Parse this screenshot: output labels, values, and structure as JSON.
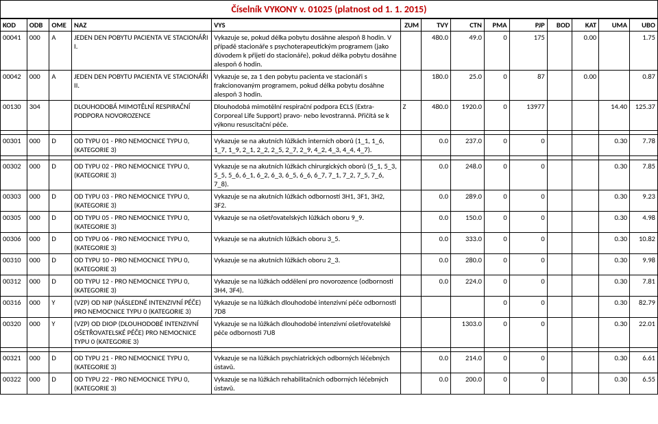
{
  "title": "Číselník VYKONY v. 01025 (platnost od 1. 1. 2015)",
  "columns": [
    "KOD",
    "ODB",
    "OME",
    "NAZ",
    "VYS",
    "ZUM",
    "TVY",
    "CTN",
    "PMA",
    "PJP",
    "BOD",
    "KAT",
    "UMA",
    "UBO"
  ],
  "rows": [
    {
      "kod": "00041",
      "odb": "000",
      "ome": "A",
      "naz": "JEDEN DEN POBYTU PACIENTA VE STACIONÁŘI I.",
      "vys": "Vykazuje se, pokud délka pobytu dosáhne alespoň 8 hodin. V případě stacionáře s psychoterapeutickým programem (jako důvodem k přijetí do stacionáře), pokud délka pobytu dosáhne alespoň 6 hodin.",
      "zum": "",
      "tvy": "480.0",
      "ctn": "49.0",
      "pma": "0",
      "pjp": "175",
      "bod": "",
      "kat": "0.00",
      "uma": "",
      "ubo": "1.75"
    },
    {
      "kod": "00042",
      "odb": "000",
      "ome": "A",
      "naz": "JEDEN DEN POBYTU PACIENTA VE STACIONÁŘI II.",
      "vys": "Vykazuje se, za 1 den pobytu pacienta ve stacionáři s frakcionovaným programem, pokud délka pobytu dosáhne alespoň 3 hodin.",
      "zum": "",
      "tvy": "180.0",
      "ctn": "25.0",
      "pma": "0",
      "pjp": "87",
      "bod": "",
      "kat": "0.00",
      "uma": "",
      "ubo": "0.87"
    },
    {
      "kod": "00130",
      "odb": "304",
      "ome": "",
      "naz": "DLOUHODOBÁ MIMOTĚLNÍ RESPIRAČNÍ PODPORA NOVOROZENCE",
      "vys": "Dlouhodobá mimotělní respirační podpora ECLS (Extra-Corporeal Life Support) pravo- nebo levostranná. Přičítá se k výkonu resuscitační péče.",
      "zum": "Z",
      "tvy": "480.0",
      "ctn": "1920.0",
      "pma": "0",
      "pjp": "13977",
      "bod": "",
      "kat": "",
      "uma": "14.40",
      "ubo": "125.37"
    },
    {
      "spacer": true
    },
    {
      "kod": "00301",
      "odb": "000",
      "ome": "D",
      "naz": "OD TYPU 01 - PRO NEMOCNICE TYPU 0, (KATEGORIE 3)",
      "vys": "Vykazuje se na akutních lůžkách interních oborů (1_1, 1_6, 1_7, 1_9, 2_1, 2_2, 2_5, 2_7, 2_9, 4_2, 4_3, 4_4, 4_7).",
      "zum": "",
      "tvy": "0.0",
      "ctn": "237.0",
      "pma": "0",
      "pjp": "0",
      "bod": "",
      "kat": "",
      "uma": "0.30",
      "ubo": "7.78"
    },
    {
      "spacer": true
    },
    {
      "kod": "00302",
      "odb": "000",
      "ome": "D",
      "naz": "OD TYPU 02 - PRO NEMOCNICE TYPU 0, (KATEGORIE 3)",
      "vys": "Vykazuje se na akutních lůžkách chirurgických oborů (5_1, 5_3, 5_5, 5_6, 6_1, 6_2, 6_3, 6_5, 6_6, 6_7, 7_1, 7_2, 7_5, 7_6, 7_8).",
      "zum": "",
      "tvy": "0.0",
      "ctn": "248.0",
      "pma": "0",
      "pjp": "0",
      "bod": "",
      "kat": "",
      "uma": "0.30",
      "ubo": "7.85"
    },
    {
      "kod": "00303",
      "odb": "000",
      "ome": "D",
      "naz": "OD TYPU 03 - PRO NEMOCNICE TYPU 0, (KATEGORIE 3)",
      "vys": "Vykazuje se na akutních lůžkách odborností 3H1, 3F1, 3H2, 3F2.",
      "zum": "",
      "tvy": "0.0",
      "ctn": "289.0",
      "pma": "0",
      "pjp": "0",
      "bod": "",
      "kat": "",
      "uma": "0.30",
      "ubo": "9.23"
    },
    {
      "kod": "00305",
      "odb": "000",
      "ome": "D",
      "naz": "OD TYPU 05 - PRO NEMOCNICE TYPU 0, (KATEGORIE 3)",
      "vys": "Vykazuje se na ošetřovatelských lůžkách oboru 9_9.",
      "zum": "",
      "tvy": "0.0",
      "ctn": "150.0",
      "pma": "0",
      "pjp": "0",
      "bod": "",
      "kat": "",
      "uma": "0.30",
      "ubo": "4.98"
    },
    {
      "kod": "00306",
      "odb": "000",
      "ome": "D",
      "naz": "OD TYPU 06 - PRO NEMOCNICE TYPU 0, (KATEGORIE 3)",
      "vys": "Vykazuje se na akutních lůžkách oboru 3_5.",
      "zum": "",
      "tvy": "0.0",
      "ctn": "333.0",
      "pma": "0",
      "pjp": "0",
      "bod": "",
      "kat": "",
      "uma": "0.30",
      "ubo": "10.82"
    },
    {
      "kod": "00310",
      "odb": "000",
      "ome": "D",
      "naz": "OD TYPU 10 - PRO NEMOCNICE TYPU 0, (KATEGORIE 3)",
      "vys": "Vykazuje se na akutních lůžkách oboru 2_3.",
      "zum": "",
      "tvy": "0.0",
      "ctn": "280.0",
      "pma": "0",
      "pjp": "0",
      "bod": "",
      "kat": "",
      "uma": "0.30",
      "ubo": "9.98"
    },
    {
      "kod": "00312",
      "odb": "000",
      "ome": "D",
      "naz": "OD TYPU 12 - PRO NEMOCNICE TYPU 0, (KATEGORIE 3)",
      "vys": "Vykazuje se na lůžkách oddělení pro novorozence (odbornosti 3H4, 3F4).",
      "zum": "",
      "tvy": "0.0",
      "ctn": "224.0",
      "pma": "0",
      "pjp": "0",
      "bod": "",
      "kat": "",
      "uma": "0.30",
      "ubo": "7.81"
    },
    {
      "kod": "00316",
      "odb": "000",
      "ome": "Y",
      "naz": "(VZP) OD NIP (NÁSLEDNÉ INTENZIVNÍ PÉČE)  PRO NEMOCNICE TYPU 0 (KATEGORIE 3)",
      "vys": "Vykazuje se na lůžkách dlouhodobé intenzivní péče odbornosti 7D8",
      "zum": "",
      "tvy": "",
      "ctn": "",
      "pma": "0",
      "pjp": "0",
      "bod": "",
      "kat": "",
      "uma": "0.30",
      "ubo": "82.79"
    },
    {
      "kod": "00320",
      "odb": "000",
      "ome": "Y",
      "naz": "(VZP) OD DIOP (DLOUHODOBÉ INTENZIVNÍ OŠETŘOVATELSKÉ PÉČE) PRO NEMOCNICE TYPU 0 (KATEGORIE 3)",
      "vys": "Vykazuje se na lůžkách dlouhodobé intenzivní ošetřovatelské péče odbornosti 7U8",
      "zum": "",
      "tvy": "",
      "ctn": "1303.0",
      "pma": "0",
      "pjp": "0",
      "bod": "",
      "kat": "",
      "uma": "0.30",
      "ubo": "22.01"
    },
    {
      "spacer": true
    },
    {
      "kod": "00321",
      "odb": "000",
      "ome": "D",
      "naz": "OD TYPU 21 - PRO NEMOCNICE TYPU 0, (KATEGORIE 3)",
      "vys": "Vykazuje se na lůžkách psychiatrických odborných léčebných ústavů.",
      "zum": "",
      "tvy": "0.0",
      "ctn": "214.0",
      "pma": "0",
      "pjp": "0",
      "bod": "",
      "kat": "",
      "uma": "0.30",
      "ubo": "6.61"
    },
    {
      "kod": "00322",
      "odb": "000",
      "ome": "D",
      "naz": "OD TYPU 22 - PRO NEMOCNICE TYPU 0, (KATEGORIE 3)",
      "vys": "Vykazuje se na lůžkách rehabilitačních odborných léčebných ústavů.",
      "zum": "",
      "tvy": "0.0",
      "ctn": "200.0",
      "pma": "0",
      "pjp": "0",
      "bod": "",
      "kat": "",
      "uma": "0.30",
      "ubo": "6.55"
    }
  ]
}
